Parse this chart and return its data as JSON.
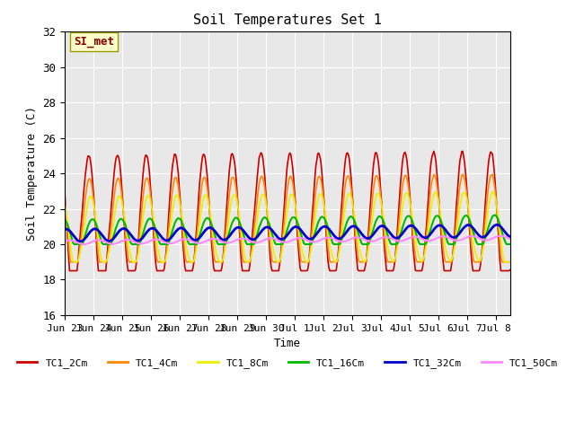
{
  "title": "Soil Temperatures Set 1",
  "xlabel": "Time",
  "ylabel": "Soil Temperature (C)",
  "ylim": [
    16,
    32
  ],
  "yticks": [
    16,
    18,
    20,
    22,
    24,
    26,
    28,
    30,
    32
  ],
  "annotation": "SI_met",
  "bg_color": "#e8e8e8",
  "fig_color": "#ffffff",
  "series_names": [
    "TC1_2Cm",
    "TC1_4Cm",
    "TC1_8Cm",
    "TC1_16Cm",
    "TC1_32Cm",
    "TC1_50Cm"
  ],
  "series_colors": [
    "#cc0000",
    "#ff8800",
    "#eeee00",
    "#00bb00",
    "#0000cc",
    "#ff88ff"
  ],
  "series_linewidths": [
    1.2,
    1.2,
    1.2,
    1.5,
    2.0,
    1.5
  ],
  "xtick_labels": [
    "Jun 23",
    "Jun 24",
    "Jun 25",
    "Jun 26",
    "Jun 27",
    "Jun 28",
    "Jun 29",
    "Jun 30",
    "Jul 1",
    "Jul 2",
    "Jul 3",
    "Jul 4",
    "Jul 5",
    "Jul 6",
    "Jul 7",
    "Jul 8"
  ],
  "num_points": 480,
  "start_day": 0,
  "end_day": 15.5,
  "grid_color": "#ffffff"
}
